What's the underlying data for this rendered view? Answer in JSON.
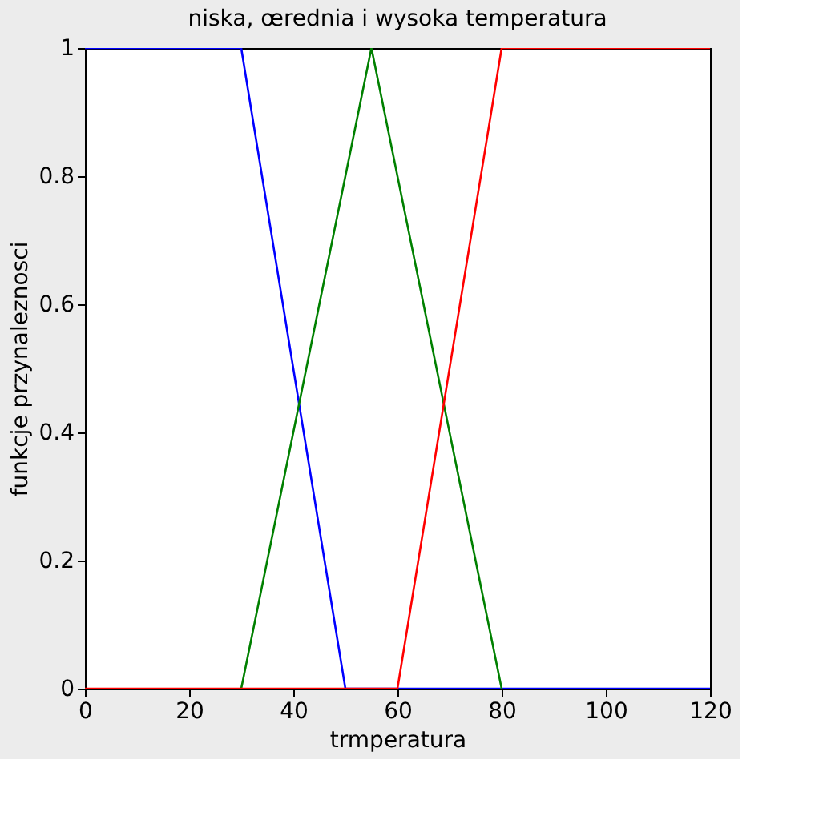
{
  "chart_data": {
    "type": "line",
    "title": "niska, œrednia i wysoka temperatura",
    "xlabel": "trmperatura",
    "ylabel": "funkcje przynaleznosci",
    "xlim": [
      0,
      120
    ],
    "ylim": [
      0,
      1
    ],
    "xticks": [
      0,
      20,
      40,
      60,
      80,
      100,
      120
    ],
    "yticks": [
      0,
      0.2,
      0.4,
      0.6,
      0.8,
      1
    ],
    "series": [
      {
        "color": "#0000ff",
        "x": [
          0,
          30,
          50,
          120
        ],
        "values": [
          1,
          1,
          0,
          0
        ]
      },
      {
        "color": "#008000",
        "x": [
          30,
          55,
          80
        ],
        "values": [
          0,
          1,
          0
        ]
      },
      {
        "color": "#ff0000",
        "x": [
          0,
          60,
          80,
          120
        ],
        "values": [
          0,
          0,
          1,
          1
        ]
      }
    ],
    "grid": false,
    "legend": false,
    "marker": "none",
    "line_style": "solid"
  }
}
